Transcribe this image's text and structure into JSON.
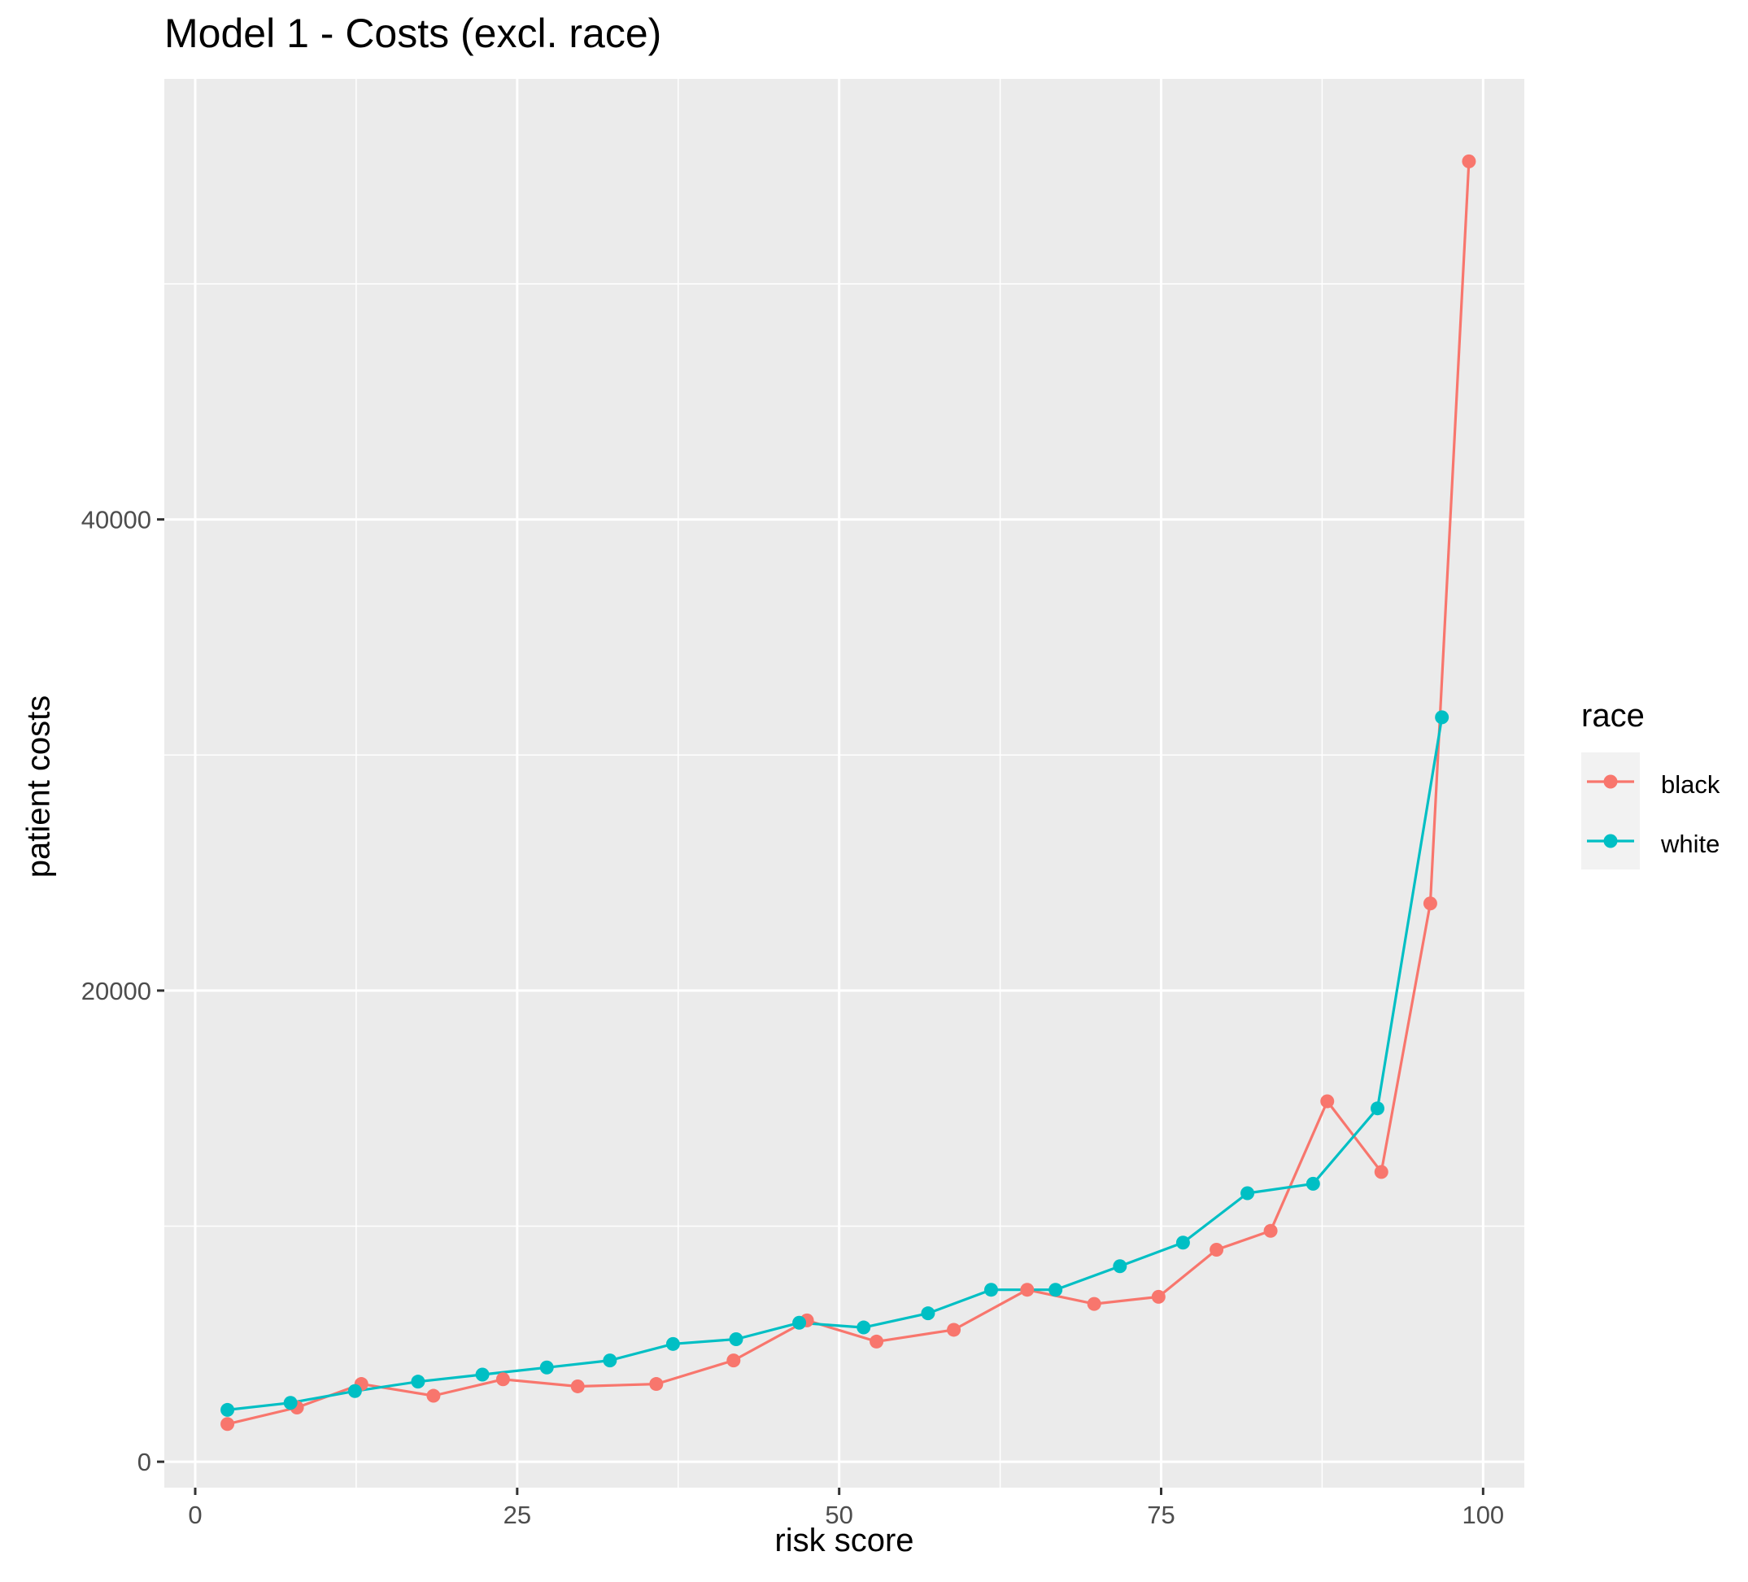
{
  "chart_data": {
    "type": "line",
    "title": "Model 1 - Costs (excl. race)",
    "xlabel": "risk score",
    "ylabel": "patient costs",
    "xlim": [
      -2.4,
      103.2
    ],
    "ylim": [
      -1100,
      58700
    ],
    "x_ticks": [
      0,
      25,
      50,
      75,
      100
    ],
    "y_ticks": [
      0,
      20000,
      40000
    ],
    "grid": true,
    "legend": {
      "title": "race",
      "position": "right"
    },
    "series": [
      {
        "name": "black",
        "color": "#F8766D",
        "x": [
          2.5,
          7.9,
          12.9,
          18.5,
          23.9,
          29.7,
          35.8,
          41.8,
          47.5,
          52.9,
          58.9,
          64.6,
          69.8,
          74.8,
          79.3,
          83.5,
          87.9,
          92.1,
          95.9,
          98.9
        ],
        "y": [
          1600,
          2300,
          3300,
          2800,
          3500,
          3200,
          3300,
          4300,
          6000,
          5100,
          5600,
          7300,
          6700,
          7000,
          9000,
          9800,
          15300,
          12300,
          23700,
          55200
        ]
      },
      {
        "name": "white",
        "color": "#00BFC4",
        "x": [
          2.5,
          7.4,
          12.4,
          17.3,
          22.3,
          27.3,
          32.2,
          37.1,
          42.0,
          46.9,
          51.9,
          56.9,
          61.8,
          66.8,
          71.8,
          76.7,
          81.7,
          86.8,
          91.8,
          96.8
        ],
        "y": [
          2200,
          2500,
          3000,
          3400,
          3700,
          4000,
          4300,
          5000,
          5200,
          5900,
          5700,
          6300,
          7300,
          7300,
          8300,
          9300,
          11400,
          11800,
          15000,
          31600
        ]
      }
    ]
  }
}
